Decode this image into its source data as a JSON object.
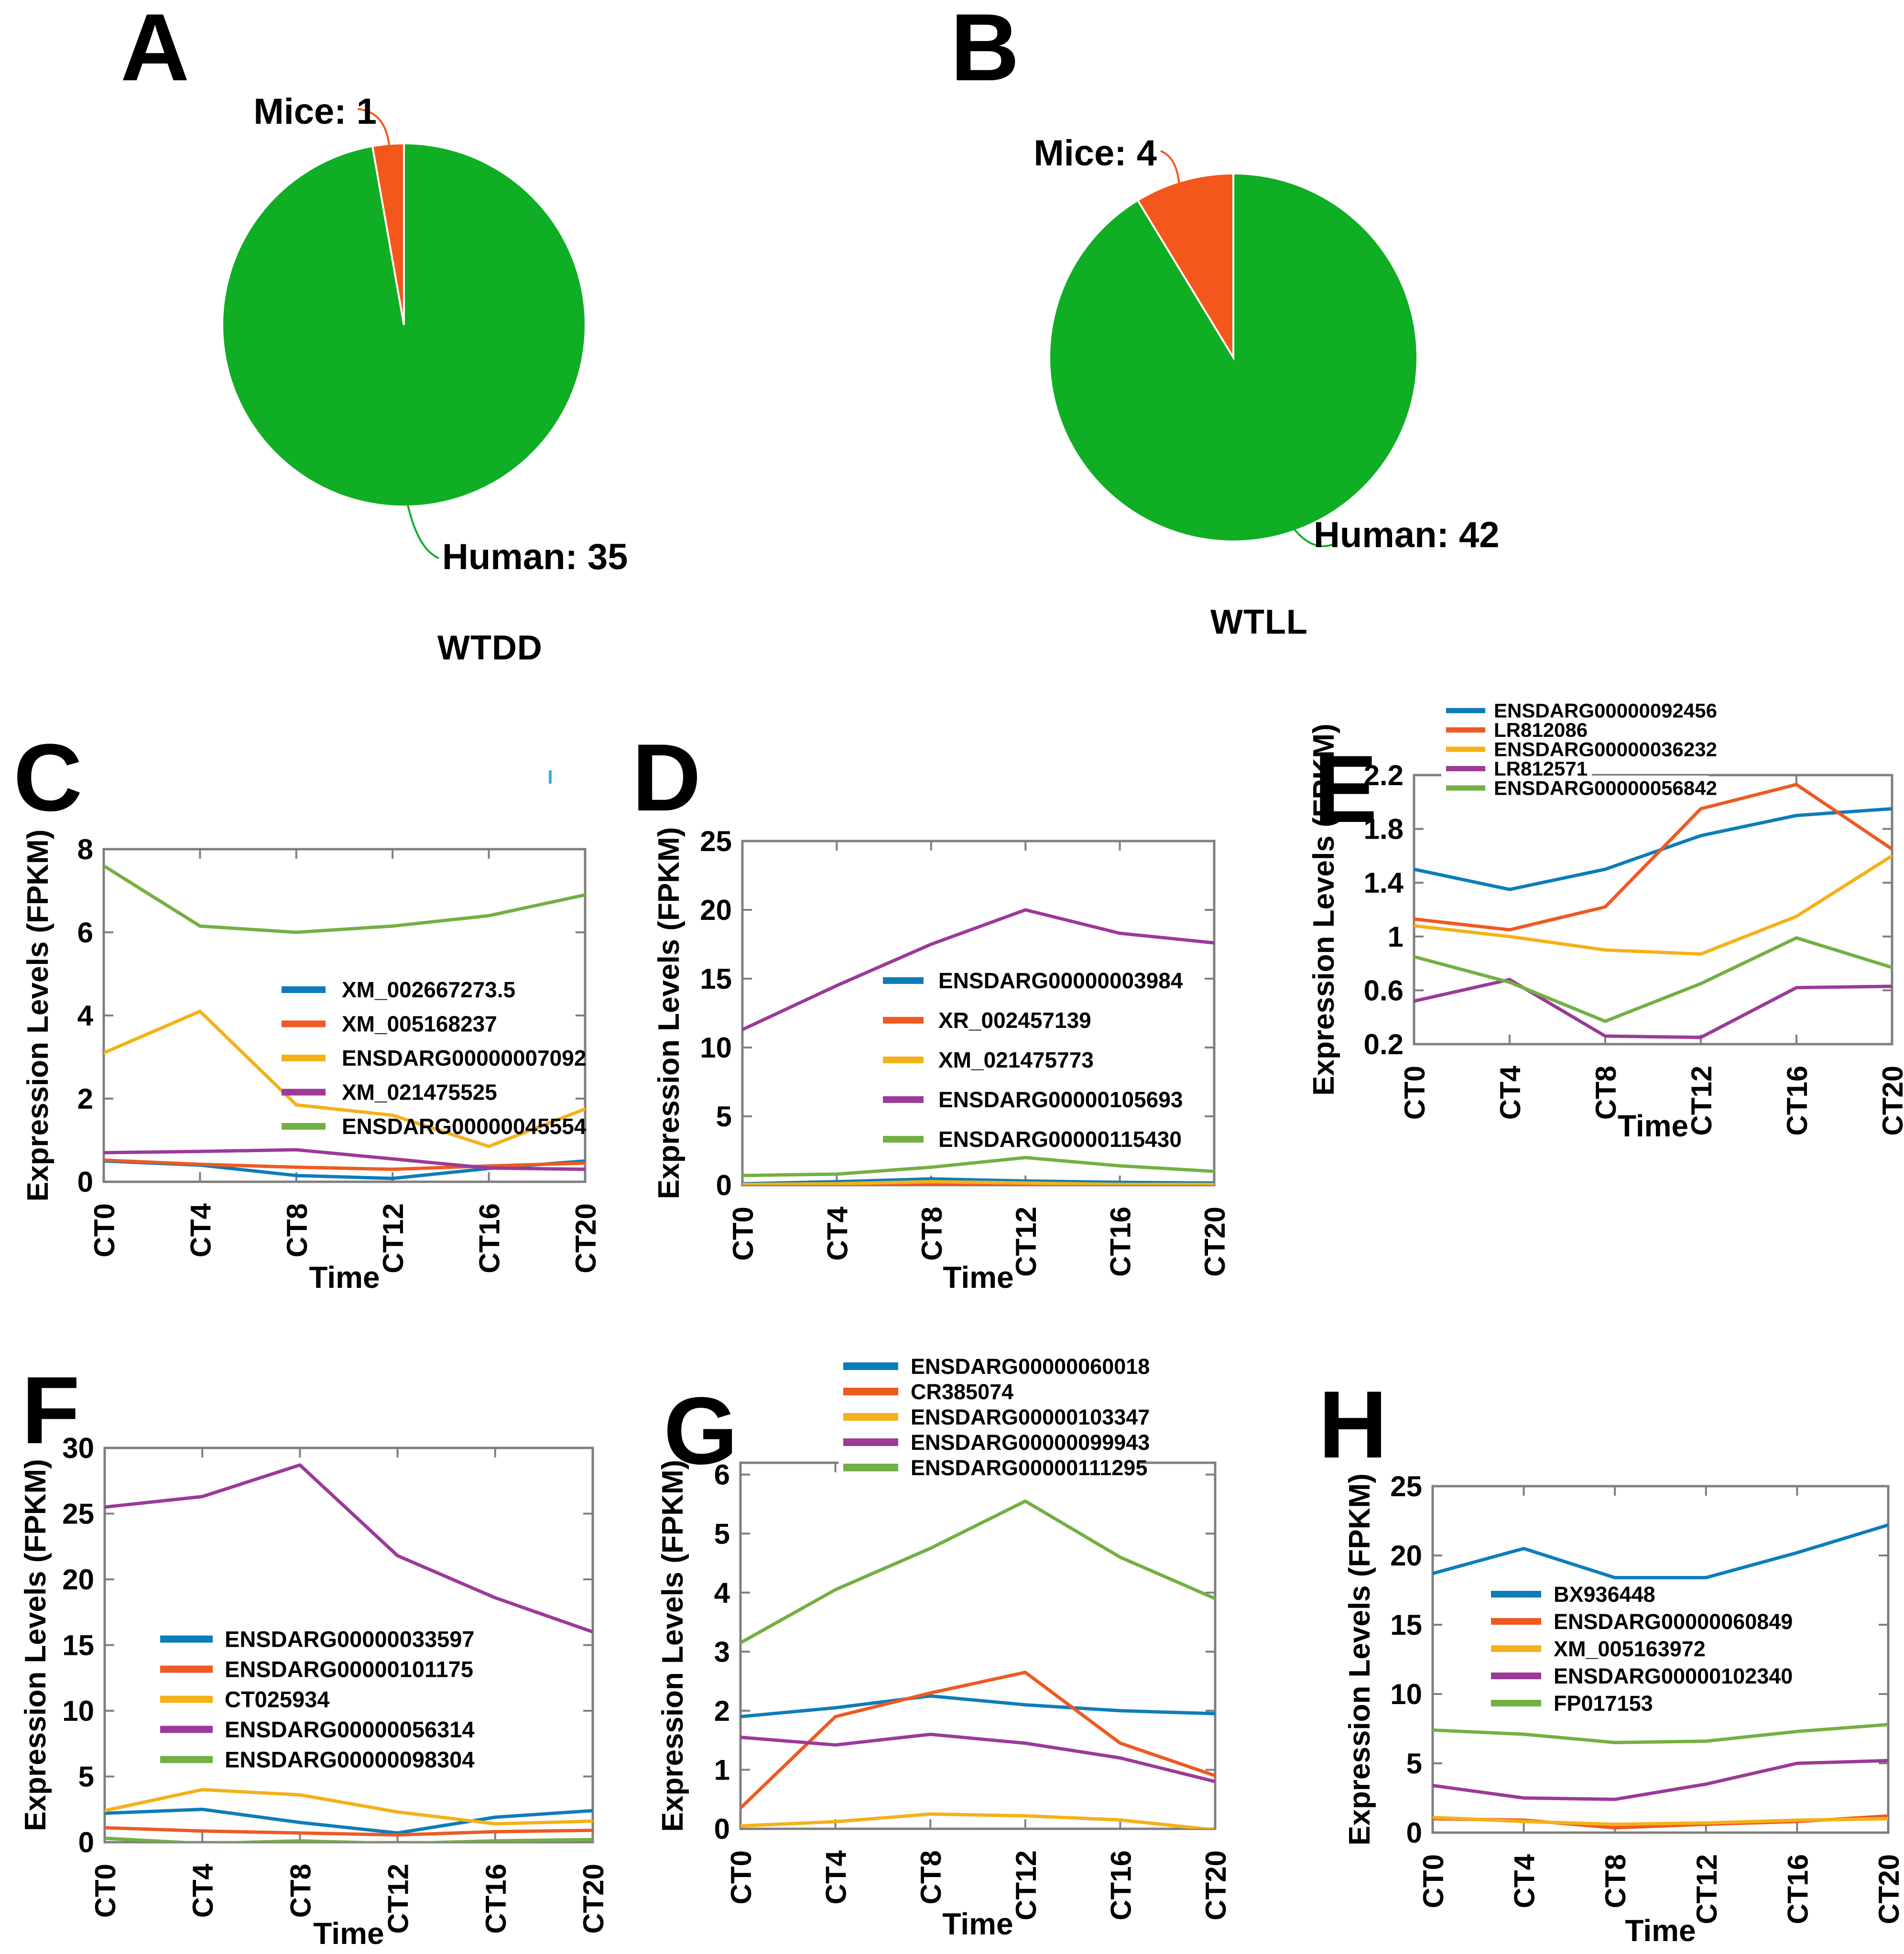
{
  "colors": {
    "blue": "#0d7dba",
    "orange": "#ed5a24",
    "yellow": "#f4b119",
    "purple": "#9b3a98",
    "green": "#73b043",
    "pie_green": "#0fae25",
    "pie_orange": "#f4571c",
    "axis": "#7f7f7f",
    "text": "#000000"
  },
  "chart_data": [
    {
      "panel": "A",
      "type": "pie",
      "title": "WTDD",
      "slices": [
        {
          "label": "Mice: 1",
          "value": 1,
          "color": "pie_orange"
        },
        {
          "label": "Human: 35",
          "value": 35,
          "color": "pie_green"
        }
      ]
    },
    {
      "panel": "B",
      "type": "pie",
      "title": "WTLL",
      "slices": [
        {
          "label": "Mice: 4",
          "value": 4,
          "color": "pie_orange"
        },
        {
          "label": "Human: 42",
          "value": 42,
          "color": "pie_green"
        }
      ]
    },
    {
      "panel": "C",
      "type": "line",
      "xlabel": "Time",
      "ylabel": "Expression Levels (FPKM)",
      "categories": [
        "CT0",
        "CT4",
        "CT8",
        "CT12",
        "CT16",
        "CT20"
      ],
      "ylim": [
        0,
        8
      ],
      "yticks": [
        0,
        2,
        4,
        6,
        8
      ],
      "legend_position": "inside",
      "series": [
        {
          "name": "XM_002667273.5",
          "color": "blue",
          "values": [
            0.5,
            0.4,
            0.15,
            0.08,
            0.32,
            0.5
          ]
        },
        {
          "name": "XM_005168237",
          "color": "orange",
          "values": [
            0.52,
            0.42,
            0.35,
            0.3,
            0.38,
            0.45
          ]
        },
        {
          "name": "ENSDARG00000007092",
          "color": "yellow",
          "values": [
            3.1,
            4.1,
            1.85,
            1.6,
            0.85,
            1.75
          ]
        },
        {
          "name": "XM_021475525",
          "color": "purple",
          "values": [
            0.7,
            0.73,
            0.77,
            0.55,
            0.33,
            0.3
          ]
        },
        {
          "name": "ENSDARG00000045554",
          "color": "green",
          "values": [
            7.6,
            6.15,
            6.0,
            6.15,
            6.4,
            6.9
          ]
        }
      ]
    },
    {
      "panel": "D",
      "type": "line",
      "xlabel": "Time",
      "ylabel": "Expression Levels (FPKM)",
      "categories": [
        "CT0",
        "CT4",
        "CT8",
        "CT12",
        "CT16",
        "CT20"
      ],
      "ylim": [
        0,
        25
      ],
      "yticks": [
        0,
        5,
        10,
        15,
        20,
        25
      ],
      "legend_position": "inside",
      "series": [
        {
          "name": "ENSDARG00000003984",
          "color": "blue",
          "values": [
            0.1,
            0.25,
            0.45,
            0.3,
            0.2,
            0.15
          ]
        },
        {
          "name": "XR_002457139",
          "color": "orange",
          "values": [
            -0.2,
            -0.1,
            0.1,
            -0.05,
            -0.15,
            -0.1
          ]
        },
        {
          "name": "XM_021475773",
          "color": "yellow",
          "values": [
            0.05,
            0.1,
            0.25,
            0.15,
            0.05,
            0.05
          ]
        },
        {
          "name": "ENSDARG00000105693",
          "color": "purple",
          "values": [
            11.3,
            14.5,
            17.5,
            20.0,
            18.3,
            17.6
          ]
        },
        {
          "name": "ENSDARG00000115430",
          "color": "green",
          "values": [
            0.7,
            0.8,
            1.3,
            2.0,
            1.4,
            1.0
          ]
        }
      ]
    },
    {
      "panel": "E",
      "type": "line",
      "xlabel": "Time",
      "ylabel": "Expression Levels (FPKM)",
      "categories": [
        "CT0",
        "CT4",
        "CT8",
        "CT12",
        "CT16",
        "CT20"
      ],
      "ylim": [
        0.2,
        2.2
      ],
      "yticks": [
        0.2,
        0.6,
        1,
        1.4,
        1.8,
        2.2
      ],
      "legend_position": "above",
      "series": [
        {
          "name": "ENSDARG00000092456",
          "color": "blue",
          "values": [
            1.5,
            1.35,
            1.5,
            1.75,
            1.9,
            1.95
          ]
        },
        {
          "name": "LR812086",
          "color": "orange",
          "values": [
            1.13,
            1.05,
            1.22,
            1.95,
            2.13,
            1.65
          ]
        },
        {
          "name": "ENSDARG00000036232",
          "color": "yellow",
          "values": [
            1.08,
            1.0,
            0.9,
            0.87,
            1.15,
            1.6
          ]
        },
        {
          "name": "LR812571",
          "color": "purple",
          "values": [
            0.52,
            0.68,
            0.26,
            0.25,
            0.62,
            0.63
          ]
        },
        {
          "name": "ENSDARG00000056842",
          "color": "green",
          "values": [
            0.85,
            0.66,
            0.37,
            0.65,
            0.99,
            0.77
          ]
        }
      ]
    },
    {
      "panel": "F",
      "type": "line",
      "xlabel": "Time",
      "ylabel": "Expression Levels (FPKM)",
      "categories": [
        "CT0",
        "CT4",
        "CT8",
        "CT12",
        "CT16",
        "CT20"
      ],
      "ylim": [
        0,
        30
      ],
      "yticks": [
        0,
        5,
        10,
        15,
        20,
        25,
        30
      ],
      "legend_position": "inside",
      "series": [
        {
          "name": "ENSDARG00000033597",
          "color": "blue",
          "values": [
            2.2,
            2.5,
            1.5,
            0.7,
            1.9,
            2.4
          ]
        },
        {
          "name": "ENSDARG00000101175",
          "color": "orange",
          "values": [
            1.1,
            0.85,
            0.7,
            0.55,
            0.8,
            0.9
          ]
        },
        {
          "name": "CT025934",
          "color": "yellow",
          "values": [
            2.4,
            4.0,
            3.6,
            2.3,
            1.4,
            1.6
          ]
        },
        {
          "name": "ENSDARG00000056314",
          "color": "purple",
          "values": [
            25.5,
            26.3,
            28.7,
            21.8,
            18.6,
            16.0
          ]
        },
        {
          "name": "ENSDARG00000098304",
          "color": "green",
          "values": [
            0.3,
            -0.1,
            0.1,
            -0.1,
            0.1,
            0.2
          ]
        }
      ]
    },
    {
      "panel": "G",
      "type": "line",
      "xlabel": "Time",
      "ylabel": "Expression Levels (FPKM)",
      "categories": [
        "CT0",
        "CT4",
        "CT8",
        "CT12",
        "CT16",
        "CT20"
      ],
      "ylim": [
        0,
        6.2
      ],
      "yticks": [
        0,
        1,
        2,
        3,
        4,
        5,
        6
      ],
      "legend_position": "above",
      "series": [
        {
          "name": "ENSDARG00000060018",
          "color": "blue",
          "values": [
            1.9,
            2.05,
            2.25,
            2.1,
            2.0,
            1.95
          ]
        },
        {
          "name": "CR385074",
          "color": "orange",
          "values": [
            0.35,
            1.9,
            2.3,
            2.65,
            1.45,
            0.9
          ]
        },
        {
          "name": "ENSDARG00000103347",
          "color": "yellow",
          "values": [
            0.05,
            0.12,
            0.25,
            0.22,
            0.15,
            -0.02
          ]
        },
        {
          "name": "ENSDARG00000099943",
          "color": "purple",
          "values": [
            1.55,
            1.42,
            1.6,
            1.45,
            1.2,
            0.8
          ]
        },
        {
          "name": "ENSDARG00000111295",
          "color": "green",
          "values": [
            3.15,
            4.05,
            4.75,
            5.55,
            4.6,
            3.9
          ]
        }
      ]
    },
    {
      "panel": "H",
      "type": "line",
      "xlabel": "Time",
      "ylabel": "Expression Levels (FPKM)",
      "categories": [
        "CT0",
        "CT4",
        "CT8",
        "CT12",
        "CT16",
        "CT20"
      ],
      "ylim": [
        0,
        25
      ],
      "yticks": [
        0,
        5,
        10,
        15,
        20,
        25
      ],
      "legend_position": "inside",
      "series": [
        {
          "name": "BX936448",
          "color": "blue",
          "values": [
            18.7,
            20.5,
            18.4,
            18.4,
            20.2,
            22.2
          ]
        },
        {
          "name": "ENSDARG00000060849",
          "color": "orange",
          "values": [
            1.0,
            0.9,
            0.35,
            0.6,
            0.8,
            1.2
          ]
        },
        {
          "name": "XM_005163972",
          "color": "yellow",
          "values": [
            1.1,
            0.8,
            0.6,
            0.7,
            0.9,
            1.0
          ]
        },
        {
          "name": "ENSDARG00000102340",
          "color": "purple",
          "values": [
            3.4,
            2.5,
            2.4,
            3.5,
            5.0,
            5.2
          ]
        },
        {
          "name": "FP017153",
          "color": "green",
          "values": [
            7.4,
            7.1,
            6.5,
            6.6,
            7.3,
            7.8
          ]
        }
      ]
    }
  ]
}
